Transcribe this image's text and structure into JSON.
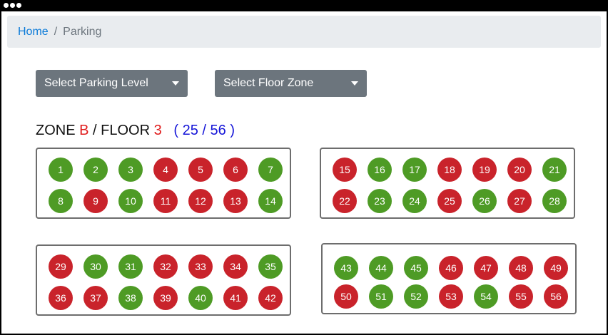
{
  "window": {
    "controls": [
      "dot",
      "dot",
      "dot"
    ]
  },
  "breadcrumb": {
    "home": "Home",
    "separator": "/",
    "current": "Parking"
  },
  "filters": {
    "level_label": "Select Parking Level",
    "zone_label": "Select Floor Zone"
  },
  "heading": {
    "zone_word": "ZONE ",
    "zone_value": "B",
    "floor_word": " / FLOOR ",
    "floor_value": "3",
    "count_text": "( 25 / 56 )"
  },
  "colors": {
    "available": "#4e9b25",
    "occupied": "#c9232b",
    "accent_red": "#e01d1d",
    "count_blue": "#1515d8"
  },
  "lots": [
    {
      "spots": [
        {
          "n": "1",
          "s": "available"
        },
        {
          "n": "2",
          "s": "available"
        },
        {
          "n": "3",
          "s": "available"
        },
        {
          "n": "4",
          "s": "occupied"
        },
        {
          "n": "5",
          "s": "occupied"
        },
        {
          "n": "6",
          "s": "occupied"
        },
        {
          "n": "7",
          "s": "available"
        },
        {
          "n": "8",
          "s": "available"
        },
        {
          "n": "9",
          "s": "occupied"
        },
        {
          "n": "10",
          "s": "available"
        },
        {
          "n": "11",
          "s": "occupied"
        },
        {
          "n": "12",
          "s": "occupied"
        },
        {
          "n": "13",
          "s": "occupied"
        },
        {
          "n": "14",
          "s": "available"
        }
      ]
    },
    {
      "spots": [
        {
          "n": "15",
          "s": "occupied"
        },
        {
          "n": "16",
          "s": "available"
        },
        {
          "n": "17",
          "s": "available"
        },
        {
          "n": "18",
          "s": "occupied"
        },
        {
          "n": "19",
          "s": "occupied"
        },
        {
          "n": "20",
          "s": "occupied"
        },
        {
          "n": "21",
          "s": "available"
        },
        {
          "n": "22",
          "s": "occupied"
        },
        {
          "n": "23",
          "s": "available"
        },
        {
          "n": "24",
          "s": "available"
        },
        {
          "n": "25",
          "s": "occupied"
        },
        {
          "n": "26",
          "s": "available"
        },
        {
          "n": "27",
          "s": "occupied"
        },
        {
          "n": "28",
          "s": "available"
        }
      ]
    },
    {
      "spots": [
        {
          "n": "29",
          "s": "occupied"
        },
        {
          "n": "30",
          "s": "available"
        },
        {
          "n": "31",
          "s": "available"
        },
        {
          "n": "32",
          "s": "occupied"
        },
        {
          "n": "33",
          "s": "occupied"
        },
        {
          "n": "34",
          "s": "occupied"
        },
        {
          "n": "35",
          "s": "available"
        },
        {
          "n": "36",
          "s": "occupied"
        },
        {
          "n": "37",
          "s": "occupied"
        },
        {
          "n": "38",
          "s": "available"
        },
        {
          "n": "39",
          "s": "occupied"
        },
        {
          "n": "40",
          "s": "available"
        },
        {
          "n": "41",
          "s": "occupied"
        },
        {
          "n": "42",
          "s": "occupied"
        }
      ]
    },
    {
      "spots": [
        {
          "n": "43",
          "s": "available"
        },
        {
          "n": "44",
          "s": "available"
        },
        {
          "n": "45",
          "s": "available"
        },
        {
          "n": "46",
          "s": "occupied"
        },
        {
          "n": "47",
          "s": "occupied"
        },
        {
          "n": "48",
          "s": "occupied"
        },
        {
          "n": "49",
          "s": "occupied"
        },
        {
          "n": "50",
          "s": "occupied"
        },
        {
          "n": "51",
          "s": "available"
        },
        {
          "n": "52",
          "s": "available"
        },
        {
          "n": "53",
          "s": "occupied"
        },
        {
          "n": "54",
          "s": "available"
        },
        {
          "n": "55",
          "s": "occupied"
        },
        {
          "n": "56",
          "s": "occupied"
        }
      ]
    }
  ]
}
